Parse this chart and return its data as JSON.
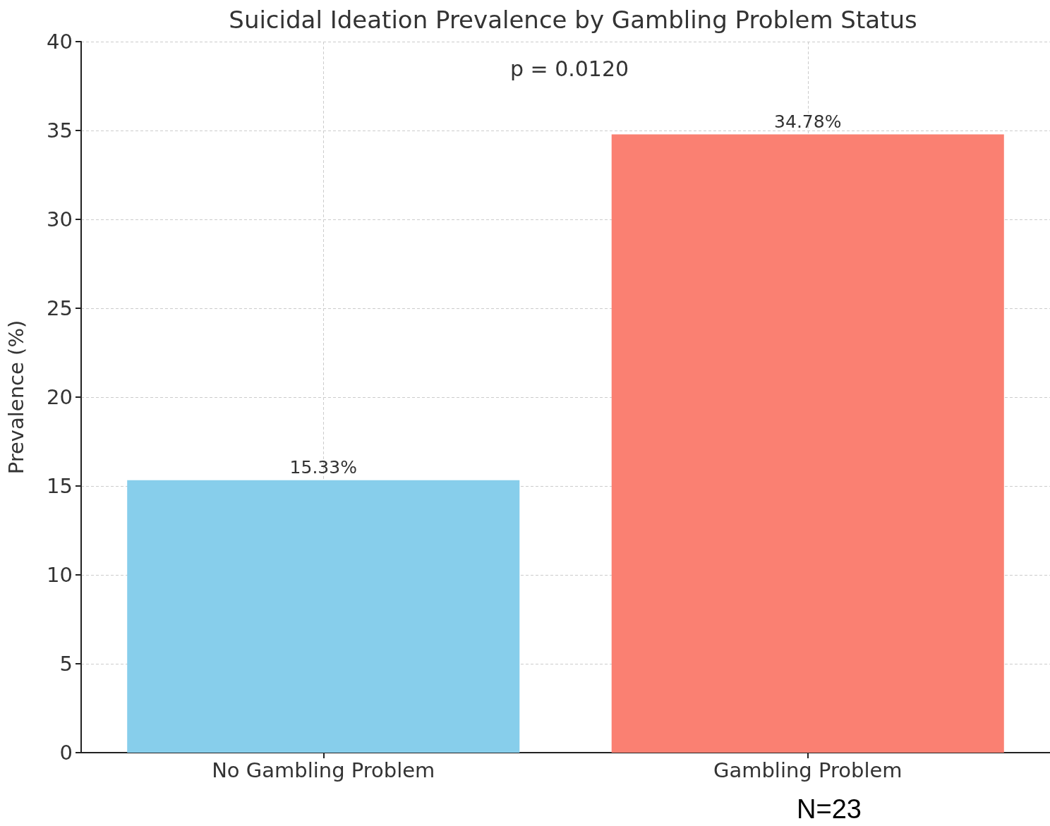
{
  "chart_data": {
    "type": "bar",
    "title": "Suicidal Ideation Prevalence by Gambling Problem Status",
    "ylabel": "Prevalence (%)",
    "categories": [
      "No Gambling Problem",
      "Gambling Problem"
    ],
    "values": [
      15.33,
      34.78
    ],
    "colors": [
      "#87ceeb",
      "#fa8072"
    ],
    "value_labels": [
      "15.33%",
      "34.78%"
    ],
    "ylim": [
      0,
      40
    ],
    "yticks": [
      0,
      5,
      10,
      15,
      20,
      25,
      30,
      35,
      40
    ],
    "grid": true,
    "annotations": [
      "p = 0.0120",
      "N=23"
    ]
  }
}
